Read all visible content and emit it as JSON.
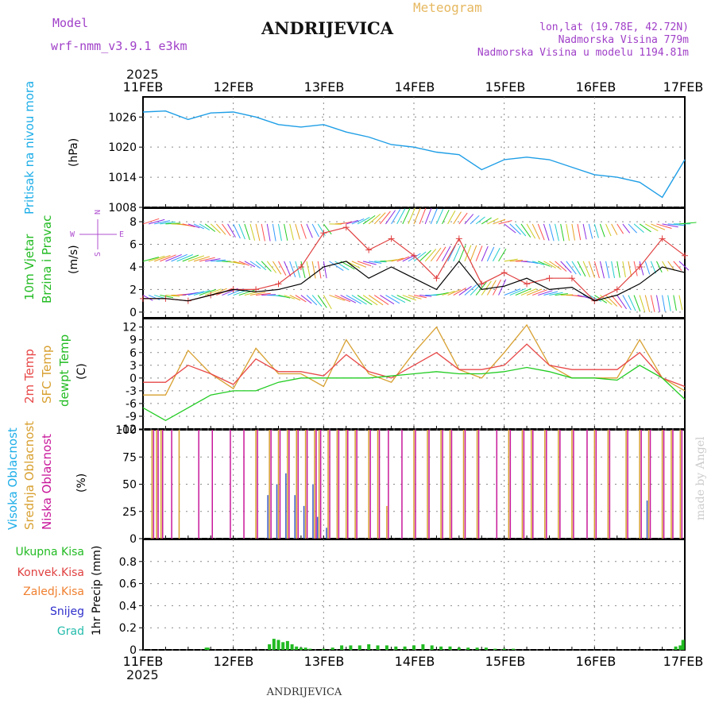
{
  "header": {
    "model_label": "Model",
    "model_name": "wrf-nmm_v3.9.1  e3km",
    "station": "ANDRIJEVICA",
    "meteogram": "Meteogram",
    "lonlat": "lon,lat (19.78E, 42.72N)",
    "elevation": "Nadmorska Visina 779m",
    "model_elevation": "Nadmorska Visina u modelu 1194.81m",
    "year": "2025",
    "footer_station": "ANDRIJEVICA",
    "watermark": "made by Angel"
  },
  "colors": {
    "pressure": "#1e9ee6",
    "wind_speed": "#000000",
    "gust": "#e04040",
    "temp2m": "#e84848",
    "sfc": "#d8a030",
    "dewpt": "#22cc22",
    "high_cloud": "#3a5ac8",
    "mid_cloud": "#d8a030",
    "low_cloud": "#c8189a",
    "total_precip": "#22bb22",
    "conv_precip": "#e04040",
    "snow": "#3030cc"
  },
  "days": [
    "11FEB",
    "12FEB",
    "13FEB",
    "14FEB",
    "15FEB",
    "16FEB",
    "17FEB"
  ],
  "panels": {
    "pressure": {
      "title": "Pritisak na nivou mora",
      "unit": "(hPa)"
    },
    "wind": {
      "title1": "10m Vjetar",
      "title2": "Brzina i Pravac",
      "unit": "(m/s)",
      "compass_n": "N",
      "compass_e": "E",
      "compass_w": "W",
      "compass_s": "S"
    },
    "temp": {
      "t1": "2m Temp",
      "t2": "SFC Temp",
      "t3": "dewpt Temp",
      "unit": "(C)"
    },
    "cloud": {
      "t1": "Visoka Oblacnost",
      "t2": "Srednja Oblacnost",
      "t3": "Niska Oblacnost",
      "unit": "(%)"
    },
    "precip": {
      "l1": "Ukupna Kisa",
      "l2": "Konvek.Kisa",
      "l3": "Zaledj.Kisa",
      "l4": "Snijeg",
      "l5": "Grad",
      "unit": "1hr Precip (mm)"
    }
  },
  "chart_data": [
    {
      "type": "line",
      "title": "Pritisak na nivou mora",
      "ylabel": "(hPa)",
      "ylim": [
        1008,
        1030
      ],
      "yticks": [
        1008,
        1014,
        1020,
        1026
      ],
      "x_days": [
        0,
        0.25,
        0.5,
        0.75,
        1,
        1.25,
        1.5,
        1.75,
        2,
        2.25,
        2.5,
        2.75,
        3,
        3.25,
        3.5,
        3.75,
        4,
        4.25,
        4.5,
        4.75,
        5,
        5.25,
        5.5,
        5.75,
        6
      ],
      "series": [
        {
          "name": "pressure",
          "values": [
            1027,
            1027.2,
            1025.5,
            1026.8,
            1027,
            1026,
            1024.5,
            1024,
            1024.5,
            1023,
            1022,
            1020.5,
            1020,
            1019,
            1018.5,
            1015.5,
            1017.5,
            1018,
            1017.5,
            1016,
            1014.5,
            1014,
            1013,
            1010,
            1017.5
          ]
        }
      ]
    },
    {
      "type": "line",
      "title": "10m Vjetar Brzina i Pravac",
      "ylabel": "(m/s)",
      "ylim": [
        -0.5,
        9.2
      ],
      "yticks": [
        0,
        2,
        4,
        6,
        8
      ],
      "x_days": [
        0,
        0.25,
        0.5,
        0.75,
        1,
        1.25,
        1.5,
        1.75,
        2,
        2.25,
        2.5,
        2.75,
        3,
        3.25,
        3.5,
        3.75,
        4,
        4.25,
        4.5,
        4.75,
        5,
        5.25,
        5.5,
        5.75,
        6
      ],
      "series": [
        {
          "name": "10m wind speed",
          "values": [
            1.2,
            1.2,
            1.0,
            1.5,
            2.0,
            1.8,
            2.0,
            2.5,
            4.0,
            4.5,
            3.0,
            4.0,
            3.0,
            2.0,
            4.5,
            2.0,
            2.3,
            3.0,
            2.0,
            2.2,
            1.0,
            1.5,
            2.5,
            4.0,
            3.5
          ]
        },
        {
          "name": "gust",
          "values": [
            1.2,
            1.2,
            1.0,
            1.5,
            2.0,
            2.0,
            2.5,
            4.0,
            7.0,
            7.5,
            5.5,
            6.5,
            5.0,
            3.0,
            6.5,
            2.5,
            3.5,
            2.5,
            3.0,
            3.0,
            1.0,
            2.0,
            4.0,
            6.5,
            5.0
          ]
        }
      ]
    },
    {
      "type": "line",
      "title": "2m / SFC / dewpt Temp",
      "ylabel": "(C)",
      "ylim": [
        -12,
        14
      ],
      "yticks": [
        -12,
        -9,
        -6,
        -3,
        0,
        3,
        6,
        9,
        12
      ],
      "x_days": [
        0,
        0.25,
        0.5,
        0.75,
        1,
        1.25,
        1.5,
        1.75,
        2,
        2.25,
        2.5,
        2.75,
        3,
        3.25,
        3.5,
        3.75,
        4,
        4.25,
        4.5,
        4.75,
        5,
        5.25,
        5.5,
        5.75,
        6
      ],
      "series": [
        {
          "name": "2m Temp",
          "values": [
            -1,
            -1,
            3,
            1,
            -1.5,
            4.5,
            1.5,
            1.5,
            0.5,
            5.5,
            1.5,
            0,
            3,
            6,
            2,
            2,
            3,
            8,
            3,
            2,
            2,
            2,
            6,
            0,
            -2
          ]
        },
        {
          "name": "SFC Temp",
          "values": [
            -4,
            -4,
            6.5,
            1,
            -2.5,
            7,
            1,
            1,
            -2,
            9,
            1,
            -1,
            6,
            12,
            2,
            0,
            6,
            12.5,
            3,
            0,
            0,
            0,
            9,
            0,
            -3
          ]
        },
        {
          "name": "dewpt Temp",
          "values": [
            -7,
            -10,
            -7,
            -4,
            -3,
            -3,
            -1,
            0,
            0,
            0,
            0,
            0.5,
            1,
            1.5,
            1,
            1,
            1.5,
            2.5,
            1.5,
            0,
            0,
            -0.5,
            3,
            0,
            -5
          ]
        }
      ]
    },
    {
      "type": "bar",
      "title": "Visoka / Srednja / Niska Oblacnost",
      "ylabel": "(%)",
      "ylim": [
        0,
        100
      ],
      "yticks": [
        0,
        25,
        50,
        75,
        100
      ],
      "x_days": [
        0.1,
        0.15,
        0.2,
        0.3,
        0.4,
        0.6,
        0.75,
        0.95,
        1.1,
        1.25,
        1.4,
        1.5,
        1.6,
        1.7,
        1.8,
        1.9,
        1.95,
        2.05,
        2.15,
        2.25,
        2.35,
        2.5,
        2.6,
        2.7,
        2.85,
        3.0,
        3.15,
        3.3,
        3.4,
        3.55,
        3.7,
        3.9,
        4.05,
        4.2,
        4.3,
        4.45,
        4.6,
        4.75,
        4.9,
        5.0,
        5.15,
        5.35,
        5.5,
        5.6,
        5.75,
        5.85,
        5.95
      ],
      "series": [
        {
          "name": "Visoka Oblacnost",
          "values": [
            0,
            0,
            0,
            0,
            0,
            0,
            0,
            0,
            0,
            0,
            40,
            50,
            60,
            40,
            30,
            50,
            20,
            10,
            0,
            0,
            0,
            0,
            0,
            0,
            0,
            0,
            0,
            0,
            0,
            0,
            0,
            0,
            0,
            0,
            0,
            0,
            0,
            0,
            0,
            0,
            0,
            0,
            0,
            35,
            0,
            0,
            0
          ]
        },
        {
          "name": "Srednja Oblacnost",
          "values": [
            100,
            100,
            100,
            0,
            100,
            0,
            0,
            0,
            0,
            100,
            100,
            100,
            100,
            100,
            100,
            100,
            100,
            100,
            100,
            100,
            100,
            100,
            100,
            30,
            0,
            100,
            100,
            100,
            100,
            100,
            100,
            0,
            100,
            100,
            100,
            100,
            100,
            100,
            0,
            100,
            100,
            100,
            100,
            100,
            100,
            100,
            100
          ]
        },
        {
          "name": "Niska Oblacnost",
          "values": [
            100,
            100,
            100,
            100,
            0,
            100,
            100,
            100,
            100,
            100,
            100,
            100,
            100,
            100,
            100,
            100,
            100,
            100,
            100,
            100,
            100,
            100,
            100,
            100,
            100,
            100,
            100,
            100,
            100,
            100,
            100,
            100,
            100,
            100,
            100,
            100,
            100,
            100,
            100,
            100,
            100,
            100,
            100,
            100,
            100,
            100,
            100
          ]
        }
      ]
    },
    {
      "type": "bar",
      "title": "1hr Precip",
      "ylabel": "1hr Precip (mm)",
      "ylim": [
        0,
        1.0
      ],
      "yticks": [
        0,
        0.2,
        0.4,
        0.6,
        0.8
      ],
      "x_days": [
        0.7,
        0.72,
        1.4,
        1.45,
        1.5,
        1.55,
        1.6,
        1.65,
        1.7,
        1.75,
        1.8,
        1.85,
        2.0,
        2.1,
        2.2,
        2.3,
        2.4,
        2.5,
        2.6,
        2.7,
        2.8,
        2.9,
        3.0,
        3.1,
        3.2,
        3.3,
        3.4,
        3.5,
        3.6,
        3.7,
        3.8,
        3.9,
        4.0,
        4.1,
        5.9,
        5.95,
        5.98
      ],
      "series": [
        {
          "name": "Ukupna Kisa",
          "values": [
            0.02,
            0.02,
            0.05,
            0.1,
            0.09,
            0.07,
            0.08,
            0.05,
            0.03,
            0.02,
            0.02,
            0.01,
            0.01,
            0.02,
            0.04,
            0.04,
            0.04,
            0.05,
            0.04,
            0.04,
            0.03,
            0.03,
            0.04,
            0.05,
            0.04,
            0.03,
            0.03,
            0.02,
            0.02,
            0.02,
            0.02,
            0.01,
            0.01,
            0.01,
            0.03,
            0.04,
            0.09
          ]
        }
      ]
    }
  ]
}
